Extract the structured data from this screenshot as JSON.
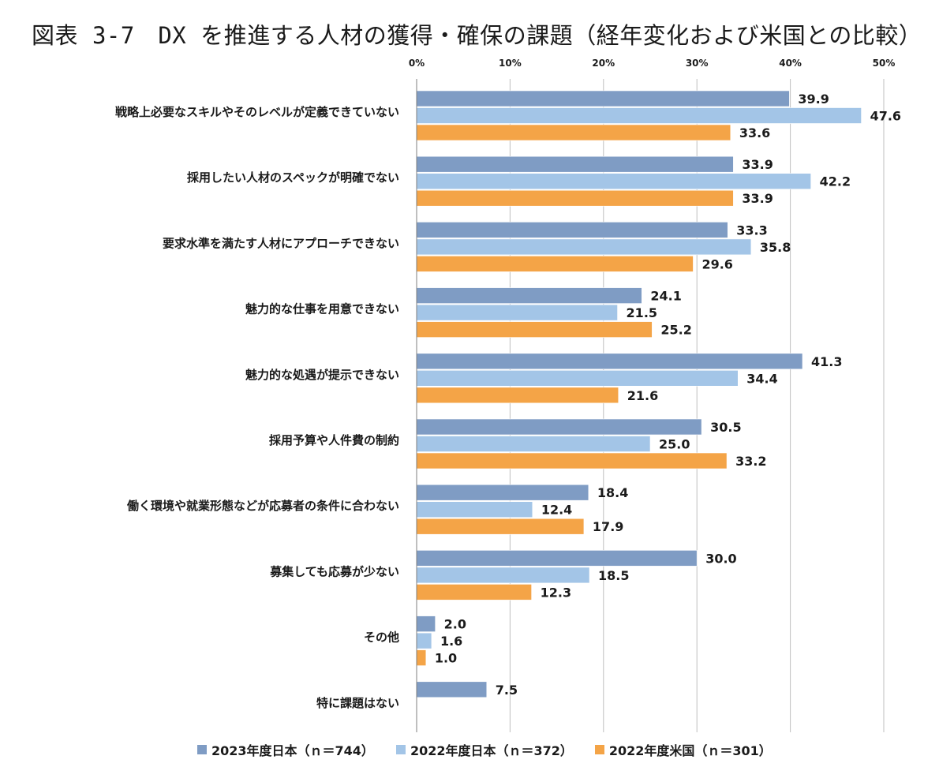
{
  "title": "図表 3-7　DX を推進する人材の獲得・確保の課題（経年変化および米国との比較）",
  "colors": {
    "s2023jp": "#7f9cc4",
    "s2022jp": "#a3c5e7",
    "s2022us": "#f4a447",
    "grid": "#bfbfbf"
  },
  "chart_data": {
    "type": "bar",
    "orientation": "horizontal",
    "title": "",
    "xlabel": "",
    "ylabel": "",
    "xlim": [
      0,
      50
    ],
    "ticks": [
      "0%",
      "10%",
      "20%",
      "30%",
      "40%",
      "50%"
    ],
    "tick_values": [
      0,
      10,
      20,
      30,
      40,
      50
    ],
    "grid": true,
    "legend_position": "bottom",
    "categories": [
      "戦略上必要なスキルやそのレベルが定義できていない",
      "採用したい人材のスペックが明確でない",
      "要求水準を満たす人材にアプローチできない",
      "魅力的な仕事を用意できない",
      "魅力的な処遇が提示できない",
      "採用予算や人件費の制約",
      "働く環境や就業形態などが応募者の条件に合わない",
      "募集しても応募が少ない",
      "その他",
      "特に課題はない"
    ],
    "series": [
      {
        "name": "2023年度日本（ｎ＝744）",
        "values": [
          39.9,
          33.9,
          33.3,
          24.1,
          41.3,
          30.5,
          18.4,
          30.0,
          2.0,
          7.5
        ]
      },
      {
        "name": "2022年度日本（ｎ＝372）",
        "values": [
          47.6,
          42.2,
          35.8,
          21.5,
          34.4,
          25.0,
          12.4,
          18.5,
          1.6,
          null
        ]
      },
      {
        "name": "2022年度米国（ｎ＝301）",
        "values": [
          33.6,
          33.9,
          29.6,
          25.2,
          21.6,
          33.2,
          17.9,
          12.3,
          1.0,
          null
        ]
      }
    ]
  }
}
